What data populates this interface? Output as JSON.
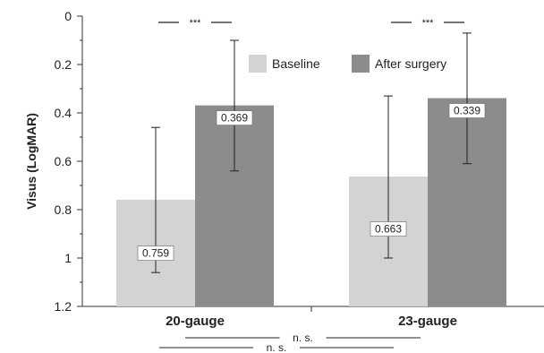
{
  "chart_data": {
    "type": "bar",
    "ylabel": "Visus (LogMAR)",
    "xlabel": "",
    "ylim": [
      0,
      1.2
    ],
    "y_inverted": true,
    "y_ticks": [
      "0",
      "0.2",
      "0.4",
      "0.6",
      "0.8",
      "1",
      "1.2"
    ],
    "y_tick_values": [
      0,
      0.2,
      0.4,
      0.6,
      0.8,
      1.0,
      1.2
    ],
    "grid": false,
    "legend_position": "top-right",
    "categories": [
      "20-gauge",
      "23-gauge"
    ],
    "series": [
      {
        "name": "Baseline",
        "color": "#d3d3d3",
        "values": [
          0.759,
          0.663
        ],
        "labels": [
          "0.759",
          "0.663"
        ],
        "error_low": [
          0.46,
          0.33
        ],
        "error_high": [
          1.06,
          1.0
        ]
      },
      {
        "name": "After surgery",
        "color": "#8c8c8c",
        "values": [
          0.369,
          0.339
        ],
        "labels": [
          "0.369",
          "0.339"
        ],
        "error_low": [
          0.1,
          0.07
        ],
        "error_high": [
          0.64,
          0.61
        ]
      }
    ],
    "annotations": {
      "within_group_significance": [
        "***",
        "***"
      ],
      "between_group_comparisons": [
        "n. s.",
        "n. s."
      ]
    }
  }
}
